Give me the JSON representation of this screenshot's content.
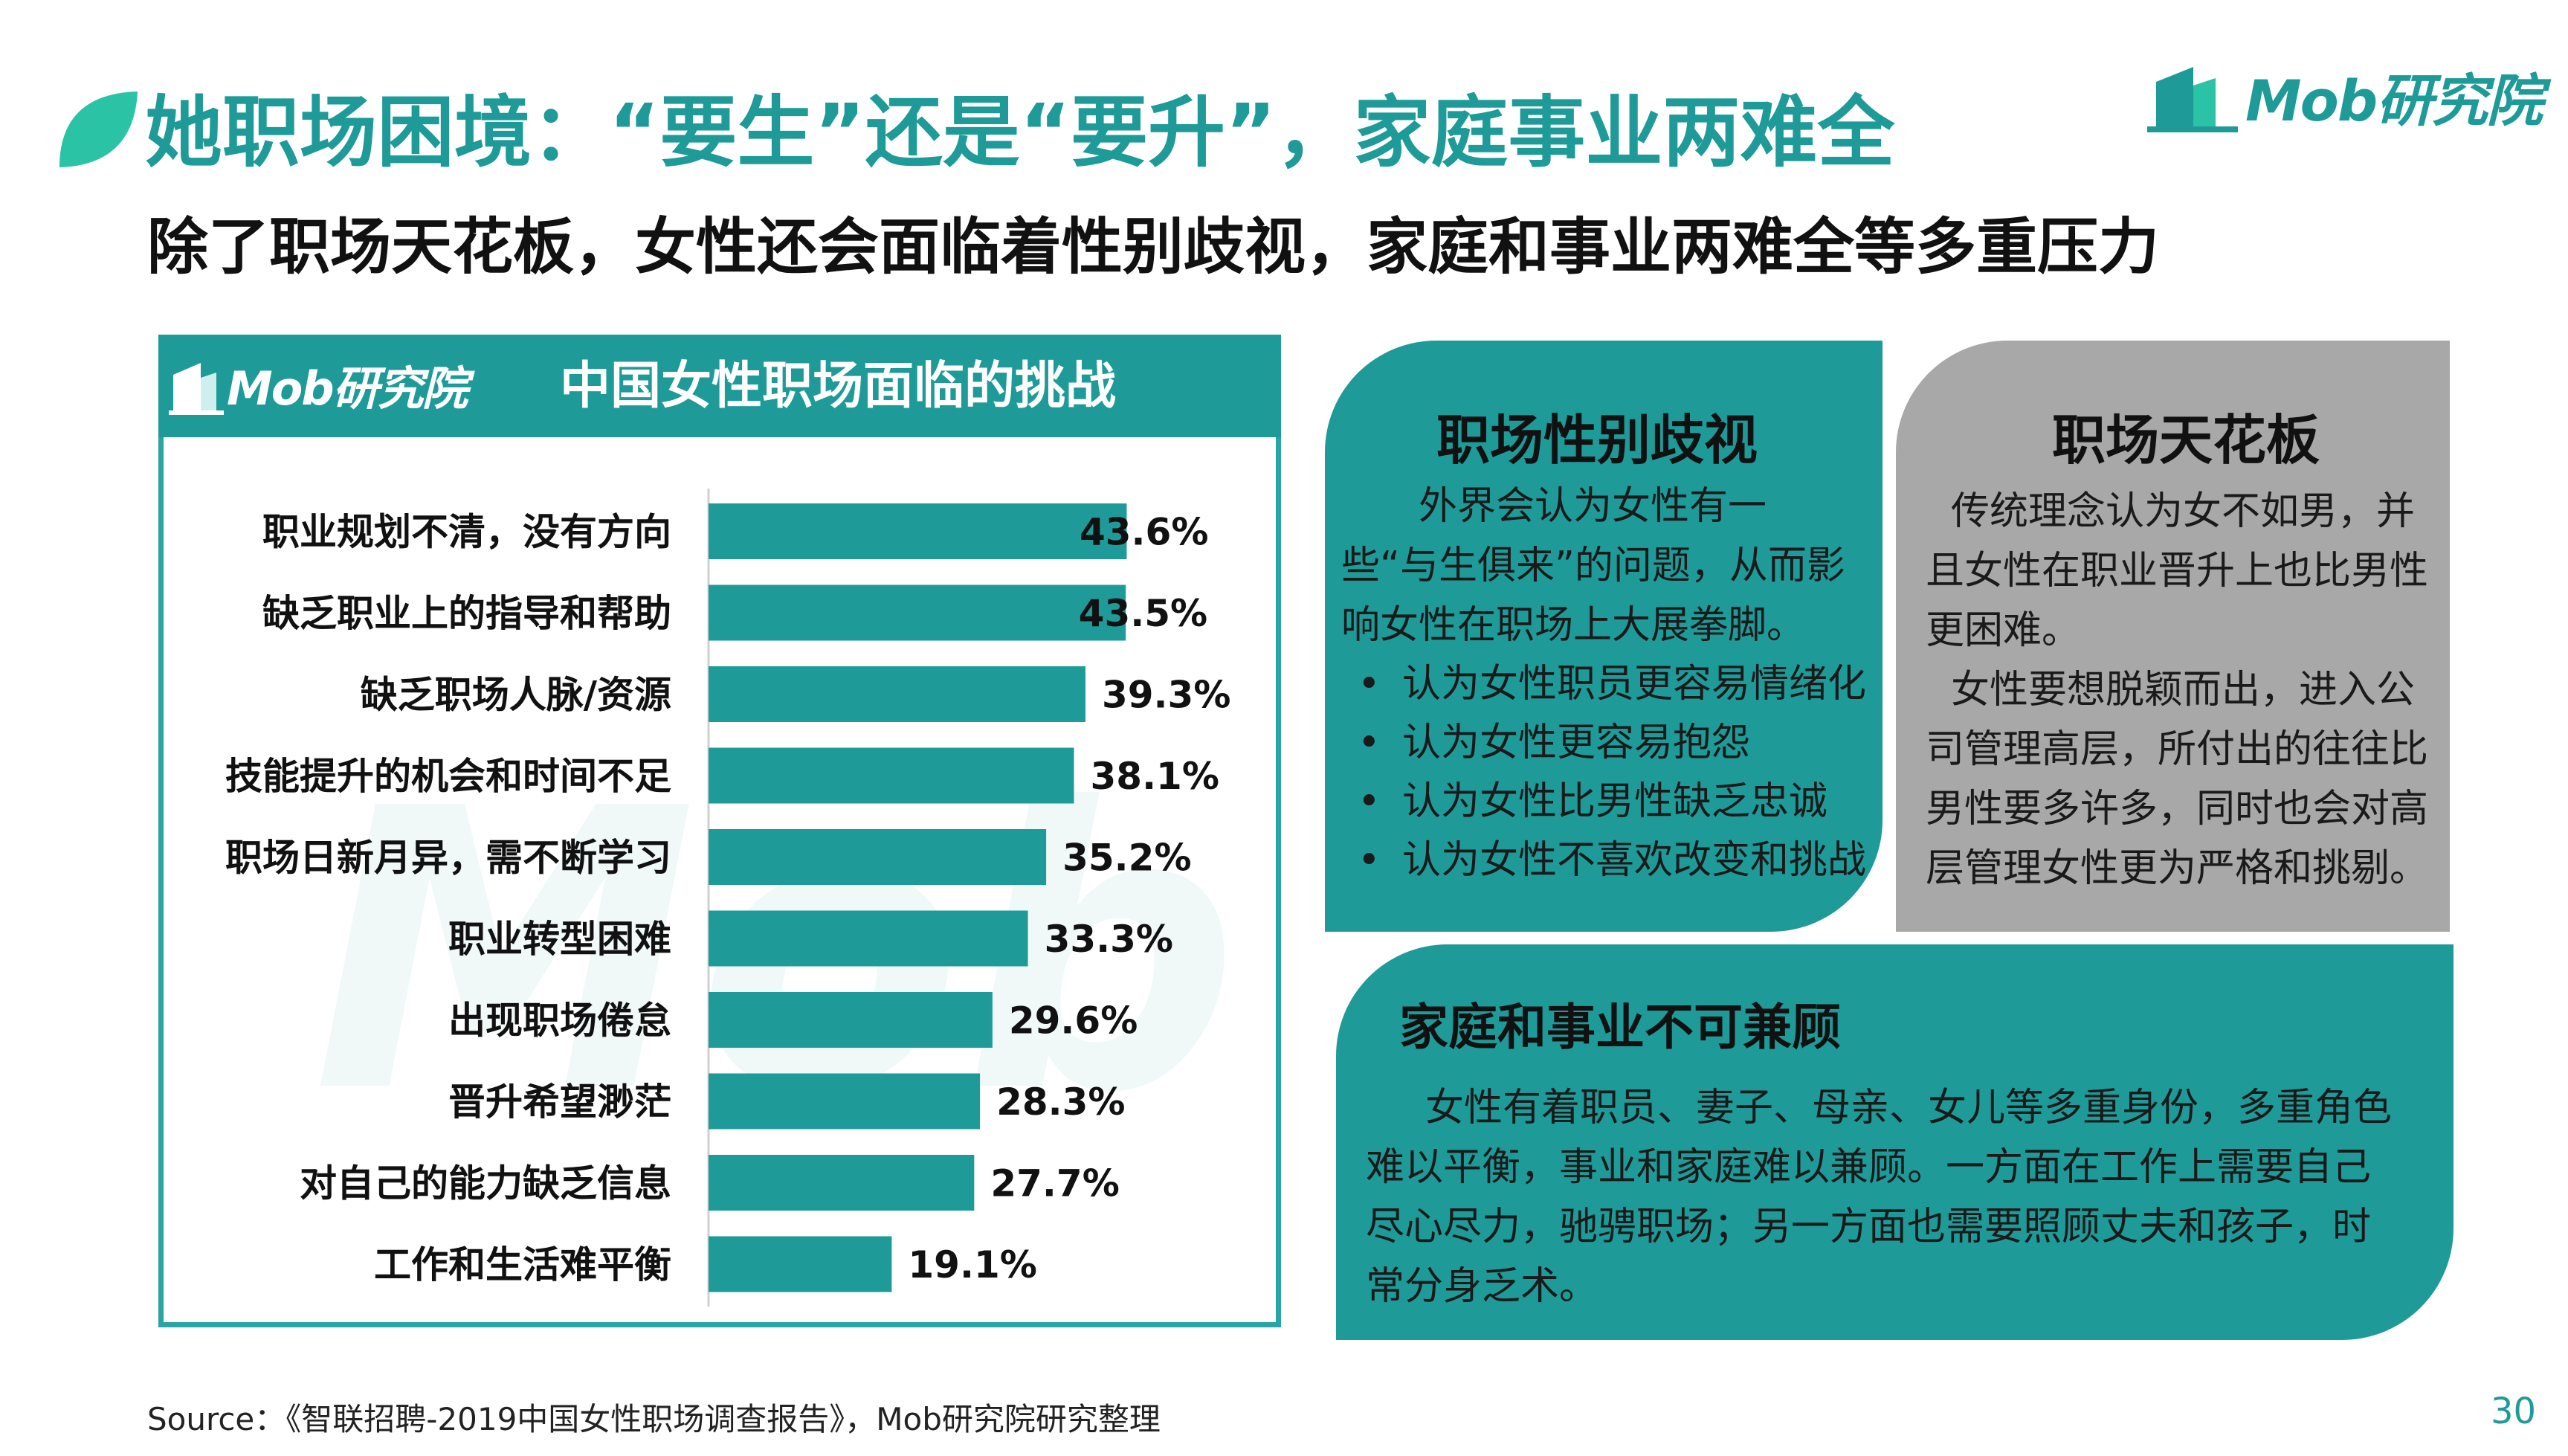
{
  "header": {
    "title": "她职场困境：“要生”还是“要升”，家庭事业两难全",
    "subtitle": "除了职场天花板，女性还会面临着性别歧视，家庭和事业两难全等多重压力",
    "logo_text": "Mob研究院"
  },
  "chart_panel": {
    "logo_text": "Mob研究院",
    "watermark": "Mob"
  },
  "chart_data": {
    "type": "bar",
    "orientation": "horizontal",
    "title": "中国女性职场面临的挑战",
    "categories": [
      "职业规划不清，没有方向",
      "缺乏职业上的指导和帮助",
      "缺乏职场人脉/资源",
      "技能提升的机会和时间不足",
      "职场日新月异，需不断学习",
      "职业转型困难",
      "出现职场倦怠",
      "晋升希望渺茫",
      "对自己的能力缺乏信息",
      "工作和生活难平衡"
    ],
    "values": [
      43.6,
      43.5,
      39.3,
      38.1,
      35.2,
      33.3,
      29.6,
      28.3,
      27.7,
      19.1
    ],
    "value_suffix": "%",
    "xlim": [
      0,
      100
    ],
    "bar_color": "#1e9b98",
    "grid": false,
    "legend": "none"
  },
  "cards": {
    "discrimination": {
      "title": "职场性别歧视",
      "intro": "外界会认为女性有一些“与生俱来”的问题，从而影响女性在职场上大展拳脚。",
      "bullet_symbol": "•",
      "items": [
        "认为女性职员更容易情绪化",
        "认为女性更容易抱怨",
        "认为女性比男性缺乏忠诚",
        "认为女性不喜欢改变和挑战"
      ]
    },
    "ceiling": {
      "title": "职场天花板",
      "para1": "传统理念认为女不如男，并且女性在职业晋升上也比男性更困难。",
      "para2": "女性要想脱颖而出，进入公司管理高层，所付出的往往比男性要多许多，同时也会对高层管理女性更为严格和挑剔。"
    },
    "family": {
      "title": "家庭和事业不可兼顾",
      "text": "女性有着职员、妻子、母亲、女儿等多重身份，多重角色难以平衡，事业和家庭难以兼顾。一方面在工作上需要自己尽心尽力，驰骋职场；另一方面也需要照顾丈夫和孩子，时常分身乏术。"
    }
  },
  "footer": {
    "source": "Source：《智联招聘-2019中国女性职场调查报告》，Mob研究院研究整理",
    "page_number": "30"
  },
  "colors": {
    "teal": "#1e9b98",
    "gray_card": "#a8a8a8"
  }
}
